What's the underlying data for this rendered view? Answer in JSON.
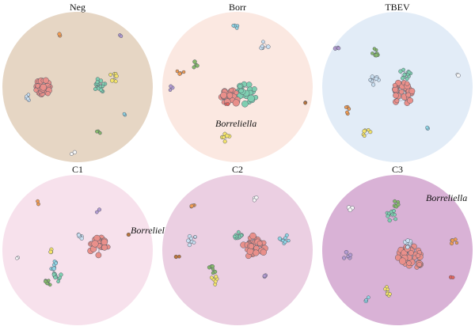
{
  "colors": {
    "pink": "#e98f8a",
    "teal": "#7fcfb1",
    "lightblue": "#c9dff1",
    "yellow": "#f4e36a",
    "green": "#86b86a",
    "orange": "#ef9a52",
    "purple": "#b29ad1",
    "white": "#f7f7f7",
    "cyan": "#8fd4e4",
    "red": "#e2655f",
    "brown": "#b9743c"
  },
  "panels": [
    {
      "id": "neg",
      "title": "Neg",
      "background": "#e6d6c4",
      "annotation": "",
      "clusters": [
        {
          "c": "pink",
          "n": 30
        },
        {
          "c": "lightblue",
          "n": 6
        },
        {
          "c": "teal",
          "n": 18
        },
        {
          "c": "yellow",
          "n": 8
        },
        {
          "c": "green",
          "n": 3
        },
        {
          "c": "purple",
          "n": 2
        },
        {
          "c": "orange",
          "n": 2
        },
        {
          "c": "white",
          "n": 2
        },
        {
          "c": "cyan",
          "n": 2
        }
      ]
    },
    {
      "id": "borr",
      "title": "Borr",
      "background": "#fbe8e1",
      "annotation": "Borreliella",
      "clusters": [
        {
          "c": "teal",
          "n": 26
        },
        {
          "c": "pink",
          "n": 24
        },
        {
          "c": "lightblue",
          "n": 6
        },
        {
          "c": "cyan",
          "n": 4
        },
        {
          "c": "orange",
          "n": 4
        },
        {
          "c": "green",
          "n": 4
        },
        {
          "c": "yellow",
          "n": 6
        },
        {
          "c": "purple",
          "n": 3
        },
        {
          "c": "red",
          "n": 2
        },
        {
          "c": "brown",
          "n": 2
        }
      ]
    },
    {
      "id": "tbev",
      "title": "TBEV",
      "background": "#e2ecf7",
      "annotation": "",
      "clusters": [
        {
          "c": "pink",
          "n": 34
        },
        {
          "c": "lightblue",
          "n": 8
        },
        {
          "c": "teal",
          "n": 12
        },
        {
          "c": "green",
          "n": 8
        },
        {
          "c": "yellow",
          "n": 6
        },
        {
          "c": "orange",
          "n": 5
        },
        {
          "c": "purple",
          "n": 3
        },
        {
          "c": "white",
          "n": 2
        },
        {
          "c": "cyan",
          "n": 2
        }
      ]
    },
    {
      "id": "c1",
      "title": "C1",
      "background": "#f7e1ec",
      "annotation": "Borreliella",
      "clusters": [
        {
          "c": "pink",
          "n": 24
        },
        {
          "c": "lightblue",
          "n": 6
        },
        {
          "c": "teal",
          "n": 10
        },
        {
          "c": "cyan",
          "n": 8
        },
        {
          "c": "green",
          "n": 6
        },
        {
          "c": "yellow",
          "n": 3
        },
        {
          "c": "brown",
          "n": 2
        },
        {
          "c": "orange",
          "n": 2
        },
        {
          "c": "white",
          "n": 2
        },
        {
          "c": "purple",
          "n": 2
        }
      ]
    },
    {
      "id": "c2",
      "title": "C2",
      "background": "#ebcfe2",
      "annotation": "",
      "clusters": [
        {
          "c": "pink",
          "n": 32
        },
        {
          "c": "lightblue",
          "n": 8
        },
        {
          "c": "teal",
          "n": 12
        },
        {
          "c": "cyan",
          "n": 8
        },
        {
          "c": "green",
          "n": 7
        },
        {
          "c": "yellow",
          "n": 6
        },
        {
          "c": "orange",
          "n": 4
        },
        {
          "c": "purple",
          "n": 3
        },
        {
          "c": "white",
          "n": 3
        },
        {
          "c": "brown",
          "n": 2
        }
      ]
    },
    {
      "id": "c3",
      "title": "C3",
      "background": "#d9b2d6",
      "annotation": "Borreliella",
      "clusters": [
        {
          "c": "pink",
          "n": 34
        },
        {
          "c": "lightblue",
          "n": 8
        },
        {
          "c": "teal",
          "n": 12
        },
        {
          "c": "yellow",
          "n": 8
        },
        {
          "c": "green",
          "n": 5
        },
        {
          "c": "orange",
          "n": 6
        },
        {
          "c": "purple",
          "n": 5
        },
        {
          "c": "white",
          "n": 3
        },
        {
          "c": "cyan",
          "n": 3
        },
        {
          "c": "red",
          "n": 2
        }
      ]
    }
  ]
}
